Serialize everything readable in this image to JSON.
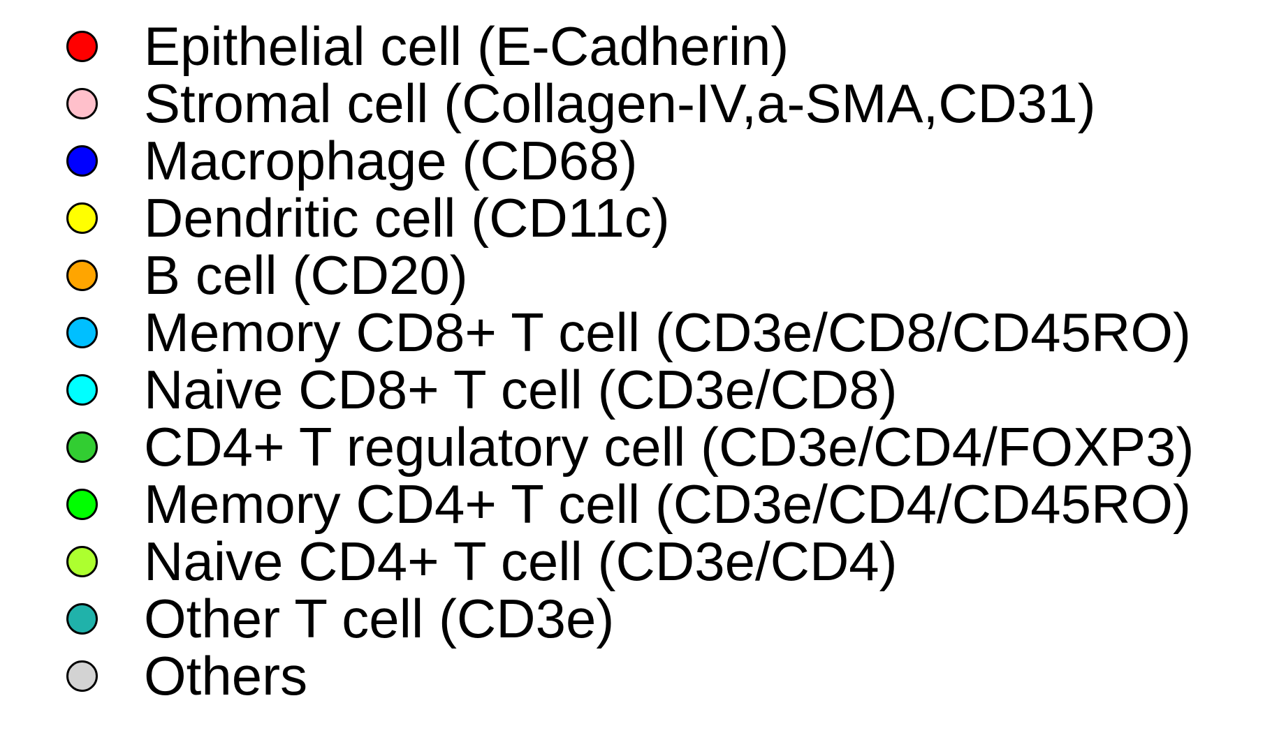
{
  "legend": {
    "items": [
      {
        "label": "Epithelial cell (E-Cadherin)",
        "color": "#ff0000"
      },
      {
        "label": "Stromal cell (Collagen-IV,a-SMA,CD31)",
        "color": "#ffc0cb"
      },
      {
        "label": "Macrophage (CD68)",
        "color": "#0000ff"
      },
      {
        "label": "Dendritic cell (CD11c)",
        "color": "#ffff00"
      },
      {
        "label": "B cell (CD20)",
        "color": "#ffa500"
      },
      {
        "label": "Memory CD8+ T cell (CD3e/CD8/CD45RO)",
        "color": "#00bfff"
      },
      {
        "label": "Naive CD8+ T cell (CD3e/CD8)",
        "color": "#00ffff"
      },
      {
        "label": "CD4+ T regulatory cell (CD3e/CD4/FOXP3)",
        "color": "#32cd32"
      },
      {
        "label": "Memory CD4+ T cell (CD3e/CD4/CD45RO)",
        "color": "#00ff00"
      },
      {
        "label": "Naive CD4+ T cell (CD3e/CD4)",
        "color": "#adff2f"
      },
      {
        "label": "Other T cell (CD3e)",
        "color": "#20b2aa"
      },
      {
        "label": "Others",
        "color": "#d3d3d3"
      }
    ]
  }
}
